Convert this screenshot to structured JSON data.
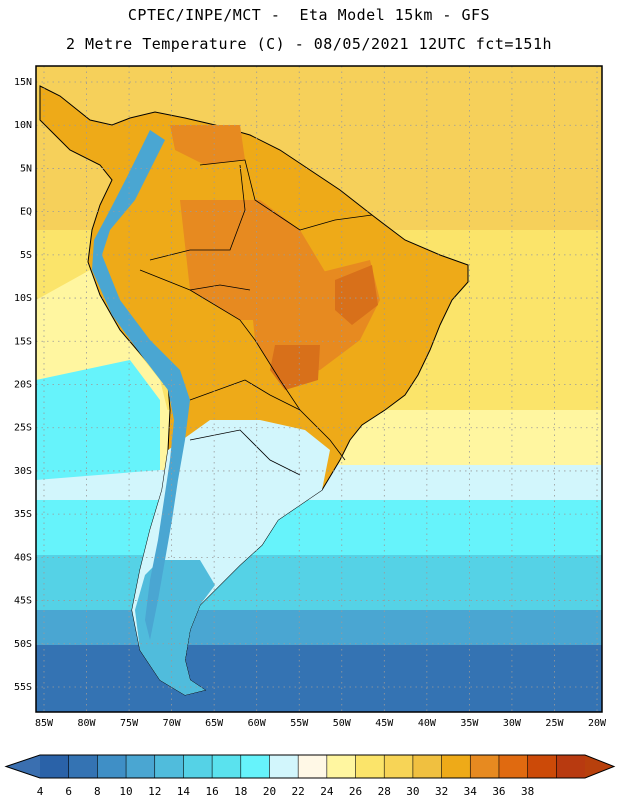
{
  "header": {
    "line1": "CPTEC/INPE/MCT -  Eta Model 15km - GFS",
    "line2": "2 Metre Temperature (C) - 08/05/2021 12UTC fct=151h"
  },
  "map": {
    "lat_labels": [
      "15N",
      "10N",
      "5N",
      "EQ",
      "5S",
      "10S",
      "15S",
      "20S",
      "25S",
      "30S",
      "35S",
      "40S",
      "45S",
      "50S",
      "55S"
    ],
    "lon_labels": [
      "85W",
      "80W",
      "75W",
      "70W",
      "65W",
      "60W",
      "55W",
      "50W",
      "45W",
      "40W",
      "35W",
      "30W",
      "25W",
      "20W"
    ]
  },
  "colorbar": {
    "labels": [
      "4",
      "6",
      "8",
      "10",
      "12",
      "14",
      "16",
      "18",
      "20",
      "22",
      "24",
      "26",
      "28",
      "30",
      "32",
      "34",
      "36",
      "38"
    ],
    "colors": [
      "#2a62a8",
      "#3473b3",
      "#3f8fc6",
      "#4aa6d2",
      "#50bcdc",
      "#55d2e6",
      "#5ae2ee",
      "#66f3fb",
      "#d2f6fc",
      "#fff8e6",
      "#fff6a0",
      "#fbe46a",
      "#f7d456",
      "#f0c040",
      "#eeaa18",
      "#e78a20",
      "#e06a10",
      "#cc4a08",
      "#b83a10"
    ],
    "lower_arrow_color": "#3a6fb0",
    "upper_arrow_color": "#b8400c"
  },
  "palette": {
    "ocean_tropical": "#f6d05a",
    "ocean_warm": "#fbe46a",
    "ocean_mild": "#fff6a0",
    "ocean_cool": "#d2f6fc",
    "ocean_cold1": "#66f3fb",
    "ocean_cold2": "#55d2e6",
    "ocean_cold3": "#4aa6d2",
    "ocean_cold4": "#3473b3",
    "land_hot": "#eeaa18",
    "land_hotter": "#e78a20",
    "land_hottest": "#d8701a",
    "andes": "#4aa6d2",
    "patagonia": "#50bcdc",
    "southern_cone": "#d2f6fc",
    "grid_color": "#9a9a9a",
    "border_color": "#000000"
  }
}
